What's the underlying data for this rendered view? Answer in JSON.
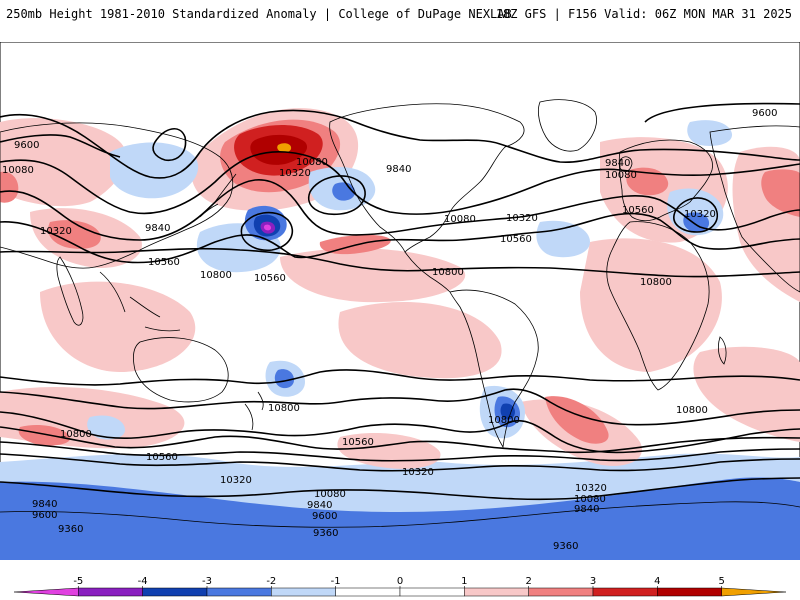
{
  "header": {
    "title_left": "250mb Height 1981-2010 Standardized Anomaly | College of DuPage NEXLAB",
    "title_right": "18Z GFS | F156 Valid: 06Z MON MAR 31 2025"
  },
  "colors": {
    "neg5": "#e040e0",
    "neg4": "#8a20c0",
    "neg3": "#1040b0",
    "neg2": "#4a78e0",
    "neg1": "#c0d8f8",
    "zero": "#ffffff",
    "pos1": "#f8c8c8",
    "pos2": "#f08080",
    "pos3": "#d02020",
    "pos4": "#b00000",
    "pos5": "#f0a000",
    "coast": "#000000",
    "contour": "#000000"
  },
  "colorbar": {
    "ticks": [
      "-5",
      "-4",
      "-3",
      "-2",
      "-1",
      "0",
      "1",
      "2",
      "3",
      "4",
      "5"
    ]
  },
  "contour_labels": {
    "l9600a": "9600",
    "l9600b": "9600",
    "l9600c": "9600",
    "l9600d": "9600",
    "l9840a": "9840",
    "l9840b": "9840",
    "l9840c": "9840",
    "l9840d": "9840",
    "l9840e": "9840",
    "l9840f": "9840",
    "l10080a": "10080",
    "l10080b": "10080",
    "l10080c": "10080",
    "l10080d": "10080",
    "l10080e": "10080",
    "l10080f": "10080",
    "l10320a": "10320",
    "l10320b": "10320",
    "l10320c": "10320",
    "l10320d": "10320",
    "l10320e": "10320",
    "l10320f": "10320",
    "l10320g": "10320",
    "l10560a": "10560",
    "l10560b": "10560",
    "l10560c": "10560",
    "l10560d": "10560",
    "l10560e": "10560",
    "l10560f": "10560",
    "l10800a": "10800",
    "l10800b": "10800",
    "l10800c": "10800",
    "l10800d": "10800",
    "l10800e": "10800",
    "l10800f": "10800",
    "l10800g": "10800",
    "l9360a": "9360",
    "l9360b": "9360",
    "l9360c": "9360"
  }
}
